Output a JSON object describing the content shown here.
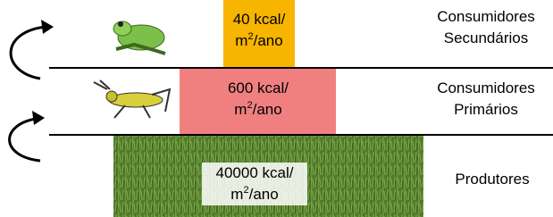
{
  "levels": [
    {
      "name": [
        "Consumidores",
        "Secundários"
      ],
      "energy": {
        "amount": "40 kcal/",
        "unit": "m",
        "exponent": "2",
        "rest": "/ano"
      }
    },
    {
      "name": [
        "Consumidores",
        "Primários"
      ],
      "energy": {
        "amount": "600 kcal/",
        "unit": "m",
        "exponent": "2",
        "rest": "/ano"
      }
    },
    {
      "name": [
        "Produtores"
      ],
      "energy": {
        "amount": "40000 kcal/",
        "unit": "m",
        "exponent": "2",
        "rest": "/ano"
      }
    }
  ]
}
